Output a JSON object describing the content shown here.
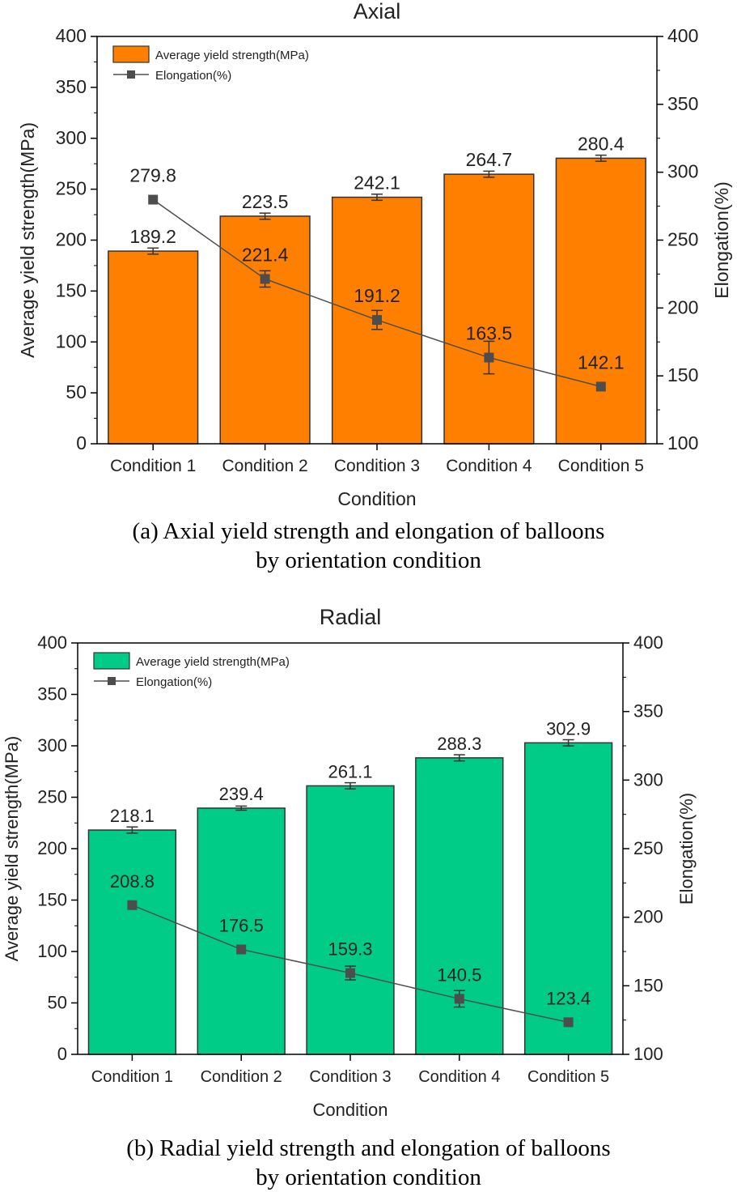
{
  "chart_data": [
    {
      "type": "bar",
      "title": "Axial",
      "xlabel": "Condition",
      "ylabel": "Average  yield strength(MPa)",
      "y2label": "Elongation(%)",
      "ylim": [
        0,
        400
      ],
      "yticks": [
        0,
        50,
        100,
        150,
        200,
        250,
        300,
        350,
        400
      ],
      "y2lim": [
        100,
        400
      ],
      "y2ticks": [
        100,
        150,
        200,
        250,
        300,
        350,
        400
      ],
      "categories": [
        "Condition 1",
        "Condition 2",
        "Condition 3",
        "Condition 4",
        "Condition 5"
      ],
      "bar_color": "#FF8000",
      "line_color": "#4d4d4d",
      "legend_position": "top-left",
      "series": [
        {
          "name": "Average  yield strength(MPa)",
          "kind": "bar",
          "axis": "left",
          "values": [
            189.2,
            223.5,
            242.1,
            264.7,
            280.4
          ],
          "labels": [
            "189.2",
            "223.5",
            "242.1",
            "264.7",
            "280.4"
          ],
          "errors": [
            3,
            3,
            3,
            3,
            3
          ]
        },
        {
          "name": "Elongation(%)",
          "kind": "line",
          "axis": "right",
          "values": [
            279.8,
            221.4,
            191.2,
            163.5,
            142.1
          ],
          "labels": [
            "279.8",
            "221.4",
            "191.2",
            "163.5",
            "142.1"
          ],
          "errors": [
            0,
            6,
            7,
            12,
            0
          ]
        }
      ]
    },
    {
      "type": "bar",
      "title": "Radial",
      "xlabel": "Condition",
      "ylabel": "Average  yield strength(MPa)",
      "y2label": "Elongation(%)",
      "ylim": [
        0,
        400
      ],
      "yticks": [
        0,
        50,
        100,
        150,
        200,
        250,
        300,
        350,
        400
      ],
      "y2lim": [
        100,
        400
      ],
      "y2ticks": [
        100,
        150,
        200,
        250,
        300,
        350,
        400
      ],
      "categories": [
        "Condition 1",
        "Condition 2",
        "Condition 3",
        "Condition 4",
        "Condition 5"
      ],
      "bar_color": "#00CC88",
      "line_color": "#4d4d4d",
      "legend_position": "top-left",
      "series": [
        {
          "name": "Average  yield strength(MPa)",
          "kind": "bar",
          "axis": "left",
          "values": [
            218.1,
            239.4,
            261.1,
            288.3,
            302.9
          ],
          "labels": [
            "218.1",
            "239.4",
            "261.1",
            "288.3",
            "302.9"
          ],
          "errors": [
            3,
            2,
            3,
            3,
            3
          ]
        },
        {
          "name": "Elongation(%)",
          "kind": "line",
          "axis": "right",
          "values": [
            208.8,
            176.5,
            159.3,
            140.5,
            123.4
          ],
          "labels": [
            "208.8",
            "176.5",
            "159.3",
            "140.5",
            "123.4"
          ],
          "errors": [
            0,
            0,
            5,
            6,
            0
          ]
        }
      ]
    }
  ],
  "captions": {
    "a_line1": "(a) Axial yield strength and elongation of balloons",
    "a_line2": "by orientation condition",
    "b_line1": "(b) Radial yield strength and elongation of balloons",
    "b_line2": "by orientation condition"
  }
}
